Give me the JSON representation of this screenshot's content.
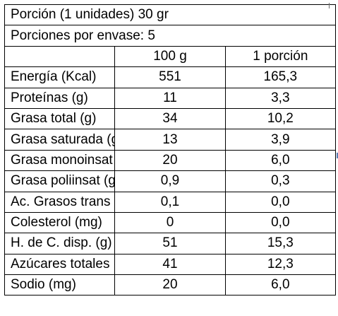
{
  "header": {
    "serving_size": "Porción (1 unidades) 30 gr",
    "servings_per_container": "Porciones por envase:  5"
  },
  "columns": {
    "per_100g": "100 g",
    "per_portion": "1 porción"
  },
  "rows": [
    {
      "label": "Energía (Kcal)",
      "per_100g": "551",
      "per_portion": "165,3",
      "align": "left"
    },
    {
      "label": "Proteínas (g)",
      "per_100g": "11",
      "per_portion": "3,3",
      "align": "left"
    },
    {
      "label": "Grasa total (g)",
      "per_100g": "34",
      "per_portion": "10,2",
      "align": "left"
    },
    {
      "label": "Grasa saturada (g)",
      "per_100g": "13",
      "per_portion": "3,9",
      "align": "right"
    },
    {
      "label": "Grasa monoinsat (g)",
      "per_100g": "20",
      "per_portion": "6,0",
      "align": "right"
    },
    {
      "label": "Grasa poliinsat (g)",
      "per_100g": "0,9",
      "per_portion": "0,3",
      "align": "right"
    },
    {
      "label": "Ac. Grasos trans (g)",
      "per_100g": "0,1",
      "per_portion": "0,0",
      "align": "right"
    },
    {
      "label": "Colesterol (mg)",
      "per_100g": "0",
      "per_portion": "0,0",
      "align": "left"
    },
    {
      "label": "H. de C. disp. (g)",
      "per_100g": "51",
      "per_portion": "15,3",
      "align": "left"
    },
    {
      "label": "Azúcares totales (g)",
      "per_100g": "41",
      "per_portion": "12,3",
      "align": "right"
    },
    {
      "label": "Sodio (mg)",
      "per_100g": "20",
      "per_portion": "6,0",
      "align": "left"
    }
  ]
}
